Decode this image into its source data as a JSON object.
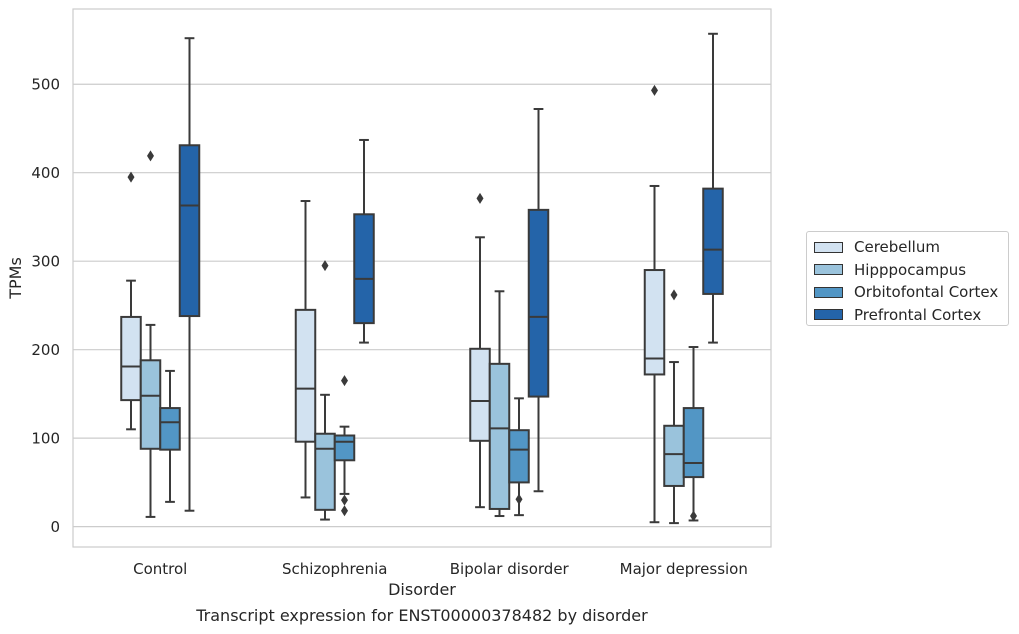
{
  "caption": "Transcript expression for ENST00000378482 by disorder",
  "chart_data": {
    "type": "box",
    "title": "",
    "xlabel": "Disorder",
    "ylabel": "TPMs",
    "ylim": [
      -23,
      585
    ],
    "yticks": [
      0,
      100,
      200,
      300,
      400,
      500
    ],
    "grid": "horizontal",
    "legend_position": "right",
    "categories": [
      "Control",
      "Schizophrenia",
      "Bipolar disorder",
      "Major depression"
    ],
    "series": [
      {
        "name": "Cerebellum",
        "color": "#d2e2f1",
        "boxes": [
          {
            "whislo": 110,
            "q1": 143,
            "med": 181,
            "q3": 237,
            "whishi": 278,
            "fliers": [
              395
            ]
          },
          {
            "whislo": 33,
            "q1": 96,
            "med": 156,
            "q3": 245,
            "whishi": 368,
            "fliers": []
          },
          {
            "whislo": 22,
            "q1": 97,
            "med": 142,
            "q3": 201,
            "whishi": 327,
            "fliers": [
              371
            ]
          },
          {
            "whislo": 5,
            "q1": 172,
            "med": 190,
            "q3": 290,
            "whishi": 385,
            "fliers": [
              493
            ]
          }
        ]
      },
      {
        "name": "Hipppocampus",
        "color": "#9ac3dc",
        "boxes": [
          {
            "whislo": 11,
            "q1": 88,
            "med": 148,
            "q3": 188,
            "whishi": 228,
            "fliers": [
              419
            ]
          },
          {
            "whislo": 8,
            "q1": 19,
            "med": 88,
            "q3": 105,
            "whishi": 149,
            "fliers": [
              295
            ]
          },
          {
            "whislo": 12,
            "q1": 20,
            "med": 111,
            "q3": 184,
            "whishi": 266,
            "fliers": []
          },
          {
            "whislo": 4,
            "q1": 46,
            "med": 82,
            "q3": 114,
            "whishi": 186,
            "fliers": [
              262
            ]
          }
        ]
      },
      {
        "name": "Orbitofontal Cortex",
        "color": "#5296c5",
        "boxes": [
          {
            "whislo": 28,
            "q1": 87,
            "med": 118,
            "q3": 134,
            "whishi": 176,
            "fliers": []
          },
          {
            "whislo": 37,
            "q1": 75,
            "med": 96,
            "q3": 103,
            "whishi": 113,
            "fliers": [
              165,
              30,
              18
            ]
          },
          {
            "whislo": 13,
            "q1": 50,
            "med": 87,
            "q3": 109,
            "whishi": 145,
            "fliers": [
              31
            ]
          },
          {
            "whislo": 7,
            "q1": 56,
            "med": 72,
            "q3": 134,
            "whishi": 203,
            "fliers": [
              12
            ]
          }
        ]
      },
      {
        "name": "Prefrontal Cortex",
        "color": "#2464a9",
        "boxes": [
          {
            "whislo": 18,
            "q1": 238,
            "med": 363,
            "q3": 431,
            "whishi": 552,
            "fliers": []
          },
          {
            "whislo": 208,
            "q1": 230,
            "med": 280,
            "q3": 353,
            "whishi": 437,
            "fliers": []
          },
          {
            "whislo": 40,
            "q1": 147,
            "med": 237,
            "q3": 358,
            "whishi": 472,
            "fliers": []
          },
          {
            "whislo": 208,
            "q1": 263,
            "med": 313,
            "q3": 382,
            "whishi": 557,
            "fliers": []
          }
        ]
      }
    ]
  }
}
